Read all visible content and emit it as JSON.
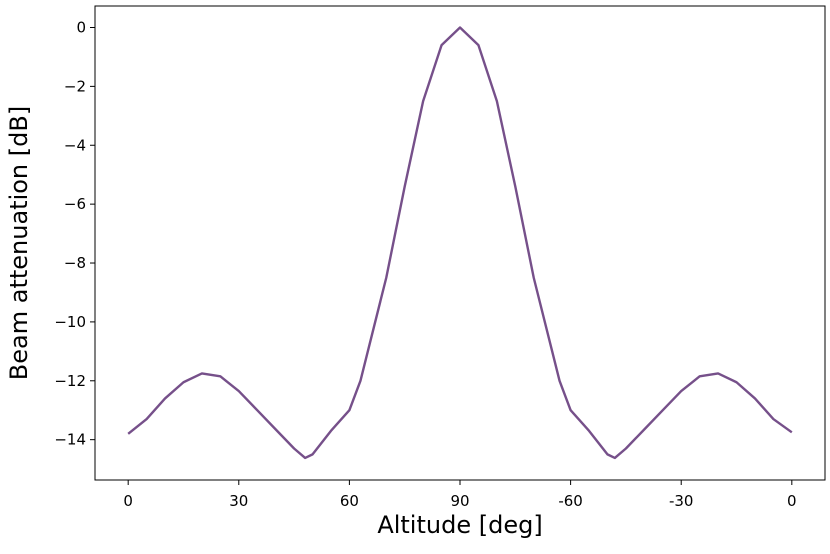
{
  "chart_data": {
    "type": "line",
    "x_label": "Altitude [deg]",
    "y_label": "Beam attenuation [dB]",
    "x": [
      0,
      5,
      10,
      15,
      20,
      25,
      30,
      35,
      40,
      45,
      48,
      50,
      55,
      60,
      63,
      65,
      70,
      75,
      80,
      85,
      90,
      95,
      100,
      105,
      110,
      115,
      117,
      120,
      125,
      130,
      132,
      135,
      140,
      145,
      150,
      155,
      160,
      165,
      170,
      175,
      180
    ],
    "series": [
      {
        "color": "#76508a",
        "values": [
          -13.8,
          -13.3,
          -12.6,
          -12.05,
          -11.75,
          -11.85,
          -12.35,
          -13.0,
          -13.65,
          -14.3,
          -14.62,
          -14.5,
          -13.7,
          -13.0,
          -12.0,
          -11.0,
          -8.5,
          -5.4,
          -2.5,
          -0.6,
          0,
          -0.6,
          -2.5,
          -5.4,
          -8.5,
          -11.0,
          -12.0,
          -13.0,
          -13.7,
          -14.5,
          -14.62,
          -14.3,
          -13.65,
          -13.0,
          -12.35,
          -11.85,
          -11.75,
          -12.05,
          -12.6,
          -13.3,
          -13.75
        ]
      }
    ],
    "xlim": [
      -9,
      189
    ],
    "ylim": [
      -15.37,
      0.73
    ],
    "xticks": [
      0,
      30,
      60,
      90,
      {
        "value": 120,
        "label": "-60"
      },
      {
        "value": 150,
        "label": "-30"
      },
      {
        "value": 180,
        "label": "0"
      }
    ],
    "yticks": [
      0,
      {
        "value": -2,
        "label": "−2"
      },
      {
        "value": -4,
        "label": "−4"
      },
      {
        "value": -6,
        "label": "−6"
      },
      {
        "value": -8,
        "label": "−8"
      },
      {
        "value": -10,
        "label": "−10"
      },
      {
        "value": -12,
        "label": "−12"
      },
      {
        "value": -14,
        "label": "−14"
      }
    ],
    "grid": false
  }
}
